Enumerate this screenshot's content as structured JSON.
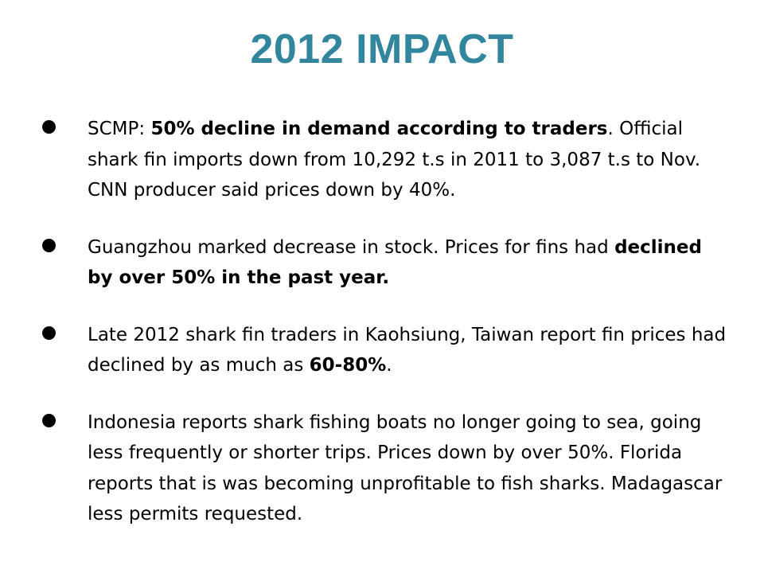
{
  "slide": {
    "title": "2012 IMPACT",
    "bullets": [
      {
        "segments": [
          {
            "text": "SCMP: ",
            "bold": false
          },
          {
            "text": "50% decline in demand according to traders",
            "bold": true
          },
          {
            "text": ". Official shark fin imports down from 10,292 t.s in 2011 to 3,087 t.s to Nov. CNN producer said prices down by 40%.",
            "bold": false
          }
        ]
      },
      {
        "segments": [
          {
            "text": "Guangzhou marked decrease in stock.  Prices for fins had ",
            "bold": false
          },
          {
            "text": "declined by over 50% in the past year.",
            "bold": true
          }
        ]
      },
      {
        "segments": [
          {
            "text": "Late 2012 shark fin traders in Kaohsiung, Taiwan report fin prices had declined by as much as ",
            "bold": false
          },
          {
            "text": "60-80%",
            "bold": true
          },
          {
            "text": ".",
            "bold": false
          }
        ]
      },
      {
        "segments": [
          {
            "text": "Indonesia reports shark fishing boats no longer going to sea, going less frequently or shorter trips. Prices down by over 50%. Florida reports that is was becoming unprofitable to fish sharks.  Madagascar less permits requested.",
            "bold": false
          }
        ]
      }
    ]
  },
  "colors": {
    "title": "#31859C",
    "text": "#000000",
    "background": "#ffffff"
  }
}
